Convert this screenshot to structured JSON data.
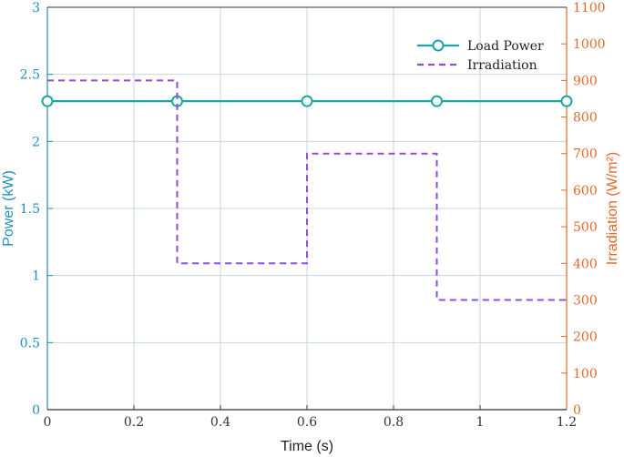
{
  "chart_data": {
    "type": "line",
    "xlabel": "Time (s)",
    "ylabel_left": "Power (kW)",
    "ylabel_right": "Irradiation (W/m²)",
    "xlim": [
      0,
      1.2
    ],
    "ylim_left": [
      0,
      3
    ],
    "ylim_right": [
      0,
      1100
    ],
    "x_ticks": [
      "0",
      "0.2",
      "0.4",
      "0.6",
      "0.8",
      "1",
      "1.2"
    ],
    "y_left_ticks": [
      "0",
      "0.5",
      "1",
      "1.5",
      "2",
      "2.5",
      "3"
    ],
    "y_right_ticks": [
      "0",
      "100",
      "200",
      "300",
      "400",
      "500",
      "600",
      "700",
      "800",
      "900",
      "1000",
      "1100"
    ],
    "grid": true,
    "legend_position": "top-right",
    "series": [
      {
        "name": "Load Power",
        "axis": "left",
        "style": "solid-with-circle-markers",
        "color": "#1aa8a0",
        "x": [
          0,
          0.3,
          0.6,
          0.9,
          1.2
        ],
        "y": [
          2.3,
          2.3,
          2.3,
          2.3,
          2.3
        ]
      },
      {
        "name": "Irradiation",
        "axis": "right",
        "style": "dashed-step",
        "color": "#8b4fd9",
        "x": [
          0,
          0.3,
          0.3,
          0.6,
          0.6,
          0.9,
          0.9,
          1.2
        ],
        "y": [
          900,
          900,
          400,
          400,
          700,
          700,
          300,
          300
        ]
      }
    ],
    "colors": {
      "left_axis": "#1f8ec2",
      "right_axis": "#e06a2a",
      "grid": "#c9d3df"
    }
  }
}
